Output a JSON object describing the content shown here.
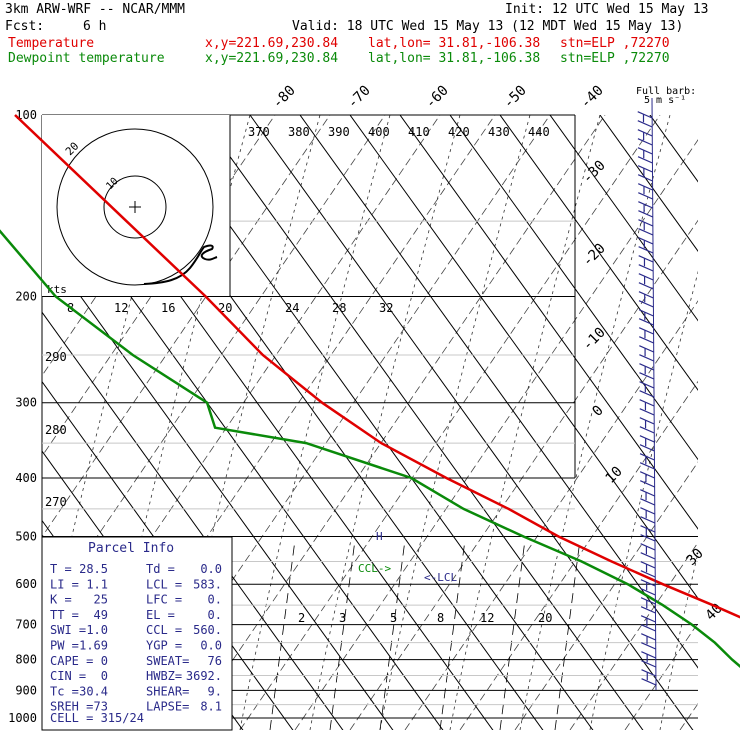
{
  "header": {
    "model": "3km ARW-WRF -- NCAR/MMM",
    "init": "Init: 12 UTC Wed 15 May 13",
    "fcst_label": "Fcst:",
    "fcst_value": "6 h",
    "valid": "Valid: 18 UTC Wed 15 May 13 (12 MDT Wed 15 May 13)",
    "temp_label": "Temperature",
    "dew_label": "Dewpoint temperature",
    "xy": "x,y=221.69,230.84",
    "latlon": "lat,lon= 31.81,-106.38",
    "stn": "stn=ELP ,72270"
  },
  "barb_legend": {
    "line1": "Full barb:",
    "line2": "5 m s⁻¹"
  },
  "hodograph": {
    "units": "kts",
    "ring_label": "20",
    "inner_label": "10"
  },
  "colors": {
    "temperature": "#e00000",
    "dewpoint": "#0a8a0a",
    "barbs": "#2a2a8a",
    "isotherm": "#000000"
  },
  "parcel_info": {
    "title": "Parcel Info",
    "rows": [
      [
        "T  =",
        "28.5",
        "Td =",
        "0.0"
      ],
      [
        "LI =",
        "1.1",
        "LCL =",
        "583."
      ],
      [
        "K  =",
        "25",
        "LFC =",
        "0."
      ],
      [
        "TT =",
        "49",
        "EL =",
        "0."
      ],
      [
        "SWI =",
        "1.0",
        "CCL =",
        "560."
      ],
      [
        "PW =",
        "1.69",
        "YGP =",
        "0.0"
      ],
      [
        "CAPE =",
        "0",
        "SWEAT=",
        "76"
      ],
      [
        "CIN =",
        "0",
        "HWBZ=",
        "3692."
      ],
      [
        "Tc =",
        "30.4",
        "SHEAR=",
        "9."
      ],
      [
        "SREH =",
        "73",
        "LAPSE=",
        "8.1"
      ]
    ],
    "cell": "CELL = 315/24"
  },
  "annotations": {
    "ccl": "CCL->",
    "lcl": "<-LCL"
  },
  "chart_data": {
    "type": "line",
    "title": "",
    "pressure_levels": [
      100,
      200,
      300,
      400,
      500,
      600,
      700,
      800,
      900,
      1000
    ],
    "isotherm_labels": [
      "-80",
      "-70",
      "-60",
      "-50",
      "-40",
      "-30",
      "-20",
      "-10",
      "0",
      "10",
      "30",
      "40"
    ],
    "theta_labels": [
      "370",
      "380",
      "390",
      "400",
      "410",
      "420",
      "430",
      "440"
    ],
    "theta_left_labels": [
      "290",
      "280",
      "270"
    ],
    "wind_labels": [
      "8",
      "12",
      "16",
      "20",
      "24",
      "28",
      "32"
    ],
    "mixing_ratio_labels": [
      "2",
      "3",
      "5",
      "8",
      "12",
      "20"
    ],
    "series": [
      {
        "name": "Temperature",
        "pressure": [
          100,
          150,
          200,
          250,
          300,
          350,
          400,
          450,
          500,
          550,
          600,
          650,
          700,
          750,
          800,
          850,
          870
        ],
        "values": [
          -67,
          -60,
          -55,
          -52,
          -47,
          -41,
          -33,
          -25,
          -19,
          -12,
          -5,
          2,
          8,
          14,
          20,
          26,
          28.5
        ]
      },
      {
        "name": "Dewpoint temperature",
        "pressure": [
          100,
          150,
          200,
          250,
          300,
          330,
          350,
          400,
          450,
          500,
          550,
          600,
          650,
          700,
          750,
          800,
          870
        ],
        "values": [
          -88,
          -87,
          -85,
          -78,
          -70,
          -72,
          -56,
          -40,
          -34,
          -26,
          -18,
          -12,
          -8,
          -5,
          -3,
          -2,
          0
        ]
      }
    ]
  }
}
